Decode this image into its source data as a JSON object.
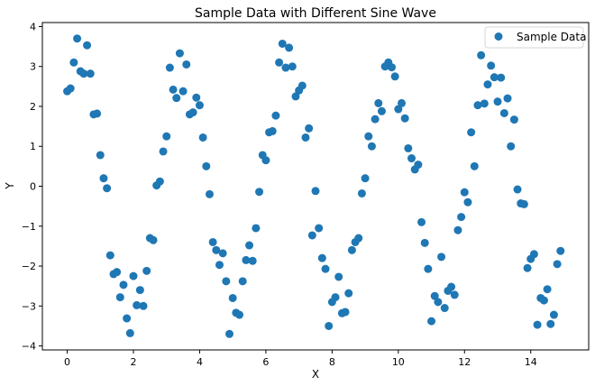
{
  "chart_data": {
    "type": "scatter",
    "title": "Sample Data with Different Sine Wave",
    "xlabel": "X",
    "ylabel": "Y",
    "xlim": [
      -0.75,
      15.75
    ],
    "ylim": [
      -4.1,
      4.1
    ],
    "xticks": [
      0,
      2,
      4,
      6,
      8,
      10,
      12,
      14
    ],
    "yticks": [
      -4,
      -3,
      -2,
      -1,
      0,
      1,
      2,
      3,
      4
    ],
    "grid": false,
    "legend": "top-right",
    "color": "#1f77b4",
    "series": [
      {
        "name": "Sample Data",
        "x": [
          0,
          0.1,
          0.2,
          0.3,
          0.4,
          0.5,
          0.6,
          0.7,
          0.8,
          0.9,
          1,
          1.1,
          1.2,
          1.3,
          1.4,
          1.5,
          1.6,
          1.7,
          1.8,
          1.9,
          2,
          2.1,
          2.2,
          2.3,
          2.4,
          2.5,
          2.6,
          2.7,
          2.8,
          2.9,
          3,
          3.1,
          3.2,
          3.3,
          3.4,
          3.5,
          3.6,
          3.7,
          3.8,
          3.9,
          4,
          4.1,
          4.2,
          4.3,
          4.4,
          4.5,
          4.6,
          4.7,
          4.8,
          4.9,
          5,
          5.1,
          5.2,
          5.3,
          5.4,
          5.5,
          5.6,
          5.7,
          5.8,
          5.9,
          6,
          6.1,
          6.2,
          6.3,
          6.4,
          6.5,
          6.6,
          6.7,
          6.8,
          6.9,
          7,
          7.1,
          7.2,
          7.3,
          7.4,
          7.5,
          7.6,
          7.7,
          7.8,
          7.9,
          8,
          8.1,
          8.2,
          8.3,
          8.4,
          8.5,
          8.6,
          8.7,
          8.8,
          8.9,
          9,
          9.1,
          9.2,
          9.3,
          9.4,
          9.5,
          9.6,
          9.7,
          9.8,
          9.9,
          10,
          10.1,
          10.2,
          10.3,
          10.4,
          10.5,
          10.6,
          10.7,
          10.8,
          10.9,
          11,
          11.1,
          11.2,
          11.3,
          11.4,
          11.5,
          11.6,
          11.7,
          11.8,
          11.9,
          12,
          12.1,
          12.2,
          12.3,
          12.4,
          12.5,
          12.6,
          12.7,
          12.8,
          12.9,
          13,
          13.1,
          13.2,
          13.3,
          13.4,
          13.5,
          13.6,
          13.7,
          13.8,
          13.9,
          14,
          14.1,
          14.2,
          14.3,
          14.4,
          14.5,
          14.6,
          14.7,
          14.8,
          14.9
        ],
        "y": [
          2.38,
          2.45,
          3.1,
          3.7,
          2.88,
          2.82,
          3.53,
          2.82,
          1.8,
          1.82,
          0.78,
          0.2,
          -0.05,
          -1.73,
          -2.2,
          -2.15,
          -2.78,
          -2.47,
          -3.31,
          -3.68,
          -2.25,
          -2.98,
          -2.6,
          -3.0,
          -2.12,
          -1.3,
          -1.35,
          0.02,
          0.12,
          0.87,
          1.25,
          2.97,
          2.42,
          2.21,
          3.33,
          2.38,
          3.05,
          1.8,
          1.85,
          2.22,
          2.03,
          1.22,
          0.5,
          -0.2,
          -1.4,
          -1.6,
          -1.97,
          -1.68,
          -2.38,
          -3.7,
          -2.8,
          -3.17,
          -3.22,
          -2.38,
          -1.85,
          -1.48,
          -1.87,
          -1.05,
          -0.14,
          0.78,
          0.65,
          1.35,
          1.38,
          1.77,
          3.1,
          3.57,
          2.97,
          3.47,
          3.0,
          2.25,
          2.4,
          2.52,
          1.22,
          1.45,
          -1.23,
          -0.12,
          -1.05,
          -1.8,
          -2.07,
          -3.5,
          -2.9,
          -2.78,
          -2.27,
          -3.18,
          -3.15,
          -2.68,
          -1.6,
          -1.4,
          -1.3,
          -0.18,
          0.2,
          1.25,
          1.0,
          1.68,
          2.08,
          1.88,
          3.0,
          3.1,
          2.98,
          2.75,
          1.93,
          2.08,
          1.7,
          0.95,
          0.7,
          0.42,
          0.54,
          -0.9,
          -1.42,
          -2.07,
          -3.38,
          -2.75,
          -2.9,
          -1.77,
          -3.05,
          -2.62,
          -2.52,
          -2.72,
          -1.1,
          -0.77,
          -0.15,
          -0.4,
          1.35,
          0.5,
          2.03,
          3.28,
          2.07,
          2.55,
          3.02,
          2.73,
          2.12,
          2.72,
          1.83,
          2.2,
          1.0,
          1.67,
          -0.08,
          -0.43,
          -0.45,
          -2.05,
          -1.82,
          -1.7,
          -3.47,
          -2.8,
          -2.86,
          -2.58,
          -3.45,
          -3.22,
          -1.95,
          -1.62
        ]
      }
    ]
  }
}
